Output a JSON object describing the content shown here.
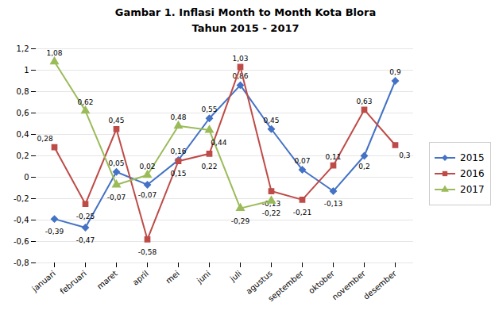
{
  "chart_data": {
    "type": "line",
    "title": "Gambar 1. Inflasi Month to Month Kota Blora",
    "subtitle": "Tahun 2015 - 2017",
    "categories": [
      "januari",
      "februari",
      "maret",
      "april",
      "mei",
      "juni",
      "juli",
      "agustus",
      "september",
      "oktober",
      "november",
      "desember"
    ],
    "series": [
      {
        "name": "2015",
        "color": "#4472C4",
        "marker": "diamond",
        "values": [
          -0.39,
          -0.47,
          0.05,
          -0.07,
          0.16,
          0.55,
          0.86,
          0.45,
          0.07,
          -0.13,
          0.2,
          0.9
        ],
        "value_labels": [
          "-0,39",
          "-0,47",
          "0,05",
          "-0,07",
          "0,16",
          "0,55",
          "0,86",
          "0,45",
          "0,07",
          "-0,13",
          "0,2",
          "0,9"
        ]
      },
      {
        "name": "2016",
        "color": "#BE4B48",
        "marker": "square",
        "values": [
          0.28,
          -0.25,
          0.45,
          -0.58,
          0.15,
          0.22,
          1.03,
          -0.13,
          -0.21,
          0.11,
          0.63,
          0.3
        ],
        "value_labels": [
          "0,28",
          "-0,25",
          "0,45",
          "-0,58",
          "0,15",
          "0,22",
          "1,03",
          "-0,13",
          "-0,21",
          "0,11",
          "0,63",
          "0,3"
        ]
      },
      {
        "name": "2017",
        "color": "#9BBB59",
        "marker": "triangle",
        "values": [
          1.08,
          0.62,
          -0.07,
          0.02,
          0.48,
          0.44,
          -0.29,
          -0.22,
          null,
          null,
          null,
          null
        ],
        "value_labels": [
          "1,08",
          "0,62",
          "-0,07",
          "0,02",
          "0,48",
          "0,44",
          "-0,29",
          "-0,22",
          null,
          null,
          null,
          null
        ]
      }
    ],
    "ylim": [
      -0.8,
      1.2
    ],
    "yticks": [
      {
        "value": -0.8,
        "label": "-0,8"
      },
      {
        "value": -0.6,
        "label": "-0,6"
      },
      {
        "value": -0.4,
        "label": "-0,4"
      },
      {
        "value": -0.2,
        "label": "-0,2"
      },
      0,
      {
        "value": 0.2,
        "label": "0,2"
      },
      {
        "value": 0.4,
        "label": "0,4"
      },
      {
        "value": 0.6,
        "label": "0,6"
      },
      {
        "value": 0.8,
        "label": "0,8"
      },
      1,
      {
        "value": 1.2,
        "label": "1,2"
      }
    ],
    "grid": true,
    "legend": "right",
    "data_labels": true
  }
}
